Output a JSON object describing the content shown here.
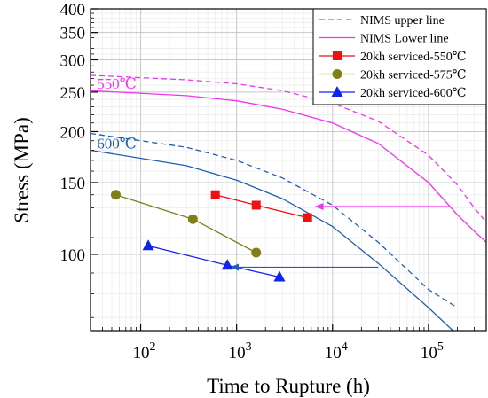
{
  "chart_data": {
    "type": "line",
    "xlabel": "Time to Rupture (h)",
    "ylabel": "Stress (MPa)",
    "x_scale": "log",
    "y_scale": "log",
    "xlim": [
      30,
      400000
    ],
    "ylim": [
      65,
      400
    ],
    "x_ticks": [
      {
        "value": 100,
        "base": "10",
        "exp": "2"
      },
      {
        "value": 1000,
        "base": "10",
        "exp": "3"
      },
      {
        "value": 10000,
        "base": "10",
        "exp": "4"
      },
      {
        "value": 100000,
        "base": "10",
        "exp": "5"
      }
    ],
    "y_ticks": [
      {
        "value": 100,
        "label": "100"
      },
      {
        "value": 150,
        "label": "150"
      },
      {
        "value": 200,
        "label": "200"
      },
      {
        "value": 250,
        "label": "250"
      },
      {
        "value": 300,
        "label": "300"
      },
      {
        "value": 350,
        "label": "350"
      },
      {
        "value": 400,
        "label": "400"
      }
    ],
    "grid": true,
    "legend_position": "top-right",
    "legend": [
      {
        "label": "NIMS upper line",
        "style": "dashed",
        "color": "#ee33ee"
      },
      {
        "label": "NIMS Lower line",
        "style": "solid",
        "color": "#ee33ee"
      },
      {
        "label": "20kh serviced-550℃",
        "marker": "square",
        "color": "#ee1111"
      },
      {
        "label": "20kh serviced-575℃",
        "marker": "circle",
        "color": "#7f7f1a"
      },
      {
        "label": "20kh serviced-600℃",
        "marker": "triangle",
        "color": "#1122ee"
      }
    ],
    "series": [
      {
        "temp": "550",
        "kind": "nims-upper",
        "color": "#ee33ee",
        "style": "dashed",
        "x": [
          30,
          300,
          1000,
          3000,
          10000,
          30000,
          100000,
          200000,
          300000,
          400000
        ],
        "y": [
          275,
          268,
          262,
          252,
          235,
          212,
          175,
          148,
          130,
          120
        ]
      },
      {
        "temp": "550",
        "kind": "nims-lower",
        "color": "#ee33ee",
        "style": "solid",
        "x": [
          30,
          300,
          1000,
          3000,
          10000,
          30000,
          100000,
          200000,
          300000,
          400000
        ],
        "y": [
          252,
          245,
          238,
          227,
          210,
          187,
          150,
          125,
          114,
          107
        ]
      },
      {
        "temp": "600",
        "kind": "nims-upper",
        "color": "#1f5fb5",
        "style": "dashed",
        "x": [
          30,
          300,
          1000,
          3000,
          10000,
          30000,
          100000,
          200000
        ],
        "y": [
          198,
          183,
          170,
          154,
          132,
          107,
          82,
          74
        ]
      },
      {
        "temp": "600",
        "kind": "nims-lower",
        "color": "#1f5fb5",
        "style": "solid",
        "x": [
          30,
          300,
          1000,
          3000,
          10000,
          30000,
          100000,
          180000
        ],
        "y": [
          180,
          165,
          152,
          137,
          117,
          95,
          74,
          65
        ]
      },
      {
        "name": "20kh serviced-550℃",
        "marker": "square",
        "color": "#ee1111",
        "x": [
          600,
          1600,
          5500
        ],
        "y": [
          140,
          132,
          123
        ]
      },
      {
        "name": "20kh serviced-575℃",
        "marker": "circle",
        "color": "#7f7f1a",
        "x": [
          55,
          350,
          1600
        ],
        "y": [
          140,
          122,
          101
        ]
      },
      {
        "name": "20kh serviced-600℃",
        "marker": "triangle",
        "color": "#1122ee",
        "x": [
          120,
          800,
          2800
        ],
        "y": [
          105,
          94,
          88
        ]
      }
    ],
    "arrows": [
      {
        "color": "#ee33ee",
        "from": [
          170000,
          131
        ],
        "to": [
          6500,
          131
        ]
      },
      {
        "color": "#1f5fb5",
        "from": [
          30000,
          93
        ],
        "to": [
          850,
          93
        ]
      }
    ],
    "annotations": [
      {
        "text": "550℃",
        "x": 35,
        "y": 255,
        "color": "#ee33ee"
      },
      {
        "text": "600℃",
        "x": 35,
        "y": 182,
        "color": "#1f5fb5"
      }
    ]
  }
}
